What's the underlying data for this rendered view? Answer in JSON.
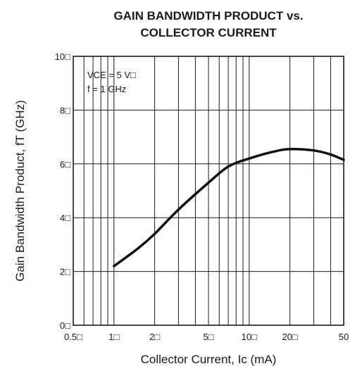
{
  "chart_data": {
    "type": "line",
    "title_lines": [
      "GAIN BANDWIDTH PRODUCT vs.",
      "COLLECTOR CURRENT"
    ],
    "xlabel": "Collector Current, Ic (mA)",
    "ylabel": "Gain Bandwidth Product, fT (GHz)",
    "x_scale": "log",
    "xlim": [
      0.5,
      50
    ],
    "ylim": [
      0,
      10
    ],
    "x_ticks": [
      0.5,
      1,
      2,
      5,
      10,
      20,
      50
    ],
    "x_tick_labels": [
      "0.5□",
      "1□",
      "2□",
      "5□",
      "10□",
      "20□",
      "50"
    ],
    "y_ticks": [
      0,
      2,
      4,
      6,
      8,
      10
    ],
    "y_tick_labels": [
      "0□",
      "2□",
      "4□",
      "6□",
      "8□",
      "10□"
    ],
    "x_grid": [
      0.5,
      0.6,
      0.7,
      0.8,
      0.9,
      1,
      2,
      3,
      4,
      5,
      6,
      7,
      8,
      9,
      10,
      20,
      30,
      40,
      50
    ],
    "y_grid": [
      0,
      2,
      4,
      6,
      8,
      10
    ],
    "grid": true,
    "annotations": [
      "VCE = 5 V□",
      "f = 1 GHz"
    ],
    "series": [
      {
        "x": [
          1,
          1.5,
          2,
          3,
          5,
          7,
          10,
          15,
          20,
          30,
          40,
          50
        ],
        "y": [
          2.2,
          2.85,
          3.4,
          4.3,
          5.3,
          5.9,
          6.2,
          6.45,
          6.55,
          6.5,
          6.35,
          6.15
        ]
      }
    ]
  }
}
